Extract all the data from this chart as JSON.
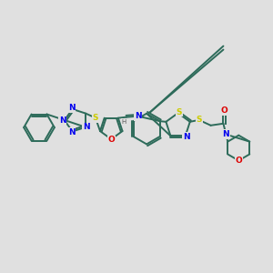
{
  "bg_color": "#e0e0e0",
  "bond_color": "#2d6b5a",
  "atom_colors": {
    "N": "#0000ee",
    "S": "#cccc00",
    "O": "#dd0000",
    "C": "#2d6b5a",
    "H": "#555555"
  },
  "line_width": 1.4,
  "font_size": 6.5
}
